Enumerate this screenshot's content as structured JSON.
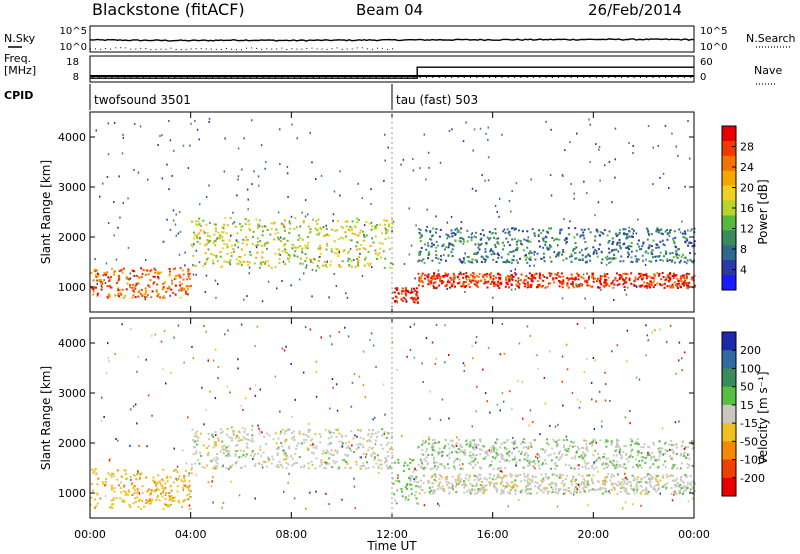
{
  "header": {
    "station": "Blackstone (fitACF)",
    "beam": "Beam 04",
    "date": "26/Feb/2014"
  },
  "side_labels": {
    "nsky": "N.Sky",
    "nsearch": "N.Search",
    "freq_line1": "Freq.",
    "freq_line2": "[MHz]",
    "nave": "Nave",
    "cpid": "CPID"
  },
  "noise_panel": {
    "left_ticks": [
      "10^5",
      "10^0"
    ],
    "right_ticks": [
      "10^5",
      "10^0"
    ]
  },
  "freq_panel": {
    "left_ticks": [
      "18",
      "8"
    ],
    "right_ticks": [
      "60",
      "0"
    ]
  },
  "cpid": {
    "programs": [
      {
        "name": "twofsound 3501",
        "start_hour": 0
      },
      {
        "name": "tau (fast) 503",
        "start_hour": 12
      }
    ]
  },
  "axes": {
    "ylabel": "Slant Range [km]",
    "yticks": [
      "1000",
      "2000",
      "3000",
      "4000"
    ],
    "xticks": [
      "00:00",
      "04:00",
      "08:00",
      "12:00",
      "16:00",
      "20:00",
      "00:00"
    ],
    "xlabel": "Time UT"
  },
  "colorbars": {
    "power": {
      "label": "Power [dB]",
      "ticks": [
        "4",
        "8",
        "12",
        "16",
        "20",
        "24",
        "28"
      ],
      "colors": [
        "#1a1aff",
        "#2a3aa8",
        "#2f6a8c",
        "#3a8a5a",
        "#58b83a",
        "#b6d42a",
        "#f0d020",
        "#f5a800",
        "#f57300",
        "#f03a00",
        "#e80000"
      ]
    },
    "velocity": {
      "label": "Velocity [m s⁻¹]",
      "ticks": [
        "200",
        "100",
        "50",
        "15",
        "-15",
        "-50",
        "-100",
        "-200"
      ],
      "colors": [
        "#1a2aa8",
        "#2f6aa0",
        "#3a8a5a",
        "#58c040",
        "#c8c8c0",
        "#f0c020",
        "#f58a00",
        "#f04000",
        "#e80000"
      ]
    }
  },
  "chart_data": [
    {
      "type": "line",
      "panel": "noise",
      "series": [
        {
          "name": "N.Sky",
          "x": [
            0,
            2,
            4,
            6,
            8,
            10,
            12,
            14,
            16,
            18,
            20,
            22,
            24
          ],
          "values": [
            200,
            160,
            140,
            180,
            150,
            170,
            190,
            210,
            220,
            230,
            250,
            260,
            240
          ]
        },
        {
          "name": "N.Search",
          "x": [
            0,
            2,
            4,
            6,
            8,
            10,
            12
          ],
          "values": [
            5,
            4,
            3,
            4,
            4,
            5,
            5
          ]
        }
      ],
      "ylim": [
        1,
        100000
      ]
    },
    {
      "type": "line",
      "panel": "frequency",
      "series": [
        {
          "name": "Freq.",
          "x": [
            0,
            4,
            8,
            12,
            16,
            20,
            24
          ],
          "values": [
            10.5,
            10.5,
            10.5,
            10.5,
            10.5,
            10.5,
            10.5
          ]
        },
        {
          "name": "Nave",
          "x": [
            0,
            13,
            13,
            24
          ],
          "values": [
            5,
            5,
            35,
            35
          ]
        }
      ]
    },
    {
      "type": "heatmap",
      "panel": "power",
      "xlabel": "Time UT",
      "ylabel": "Slant Range [km]",
      "xlim": [
        0,
        24
      ],
      "ylim": [
        500,
        4500
      ],
      "colorbar_label": "Power [dB]",
      "clim": [
        0,
        30
      ],
      "regions": [
        {
          "hours": [
            0,
            4
          ],
          "range_km": [
            800,
            1400
          ],
          "power_db": 24
        },
        {
          "hours": [
            4,
            12
          ],
          "range_km": [
            1400,
            2400
          ],
          "power_db": 16
        },
        {
          "hours": [
            12,
            13
          ],
          "range_km": [
            700,
            1000
          ],
          "power_db": 28
        },
        {
          "hours": [
            13,
            24
          ],
          "range_km": [
            1000,
            1300
          ],
          "power_db": 27
        },
        {
          "hours": [
            13,
            24
          ],
          "range_km": [
            1500,
            2200
          ],
          "power_db": 8
        }
      ]
    },
    {
      "type": "heatmap",
      "panel": "velocity",
      "xlabel": "Time UT",
      "ylabel": "Slant Range [km]",
      "xlim": [
        0,
        24
      ],
      "ylim": [
        500,
        4500
      ],
      "colorbar_label": "Velocity [m s⁻¹]",
      "clim": [
        -200,
        200
      ],
      "regions": [
        {
          "hours": [
            0,
            4
          ],
          "range_km": [
            700,
            1500
          ],
          "velocity": -50
        },
        {
          "hours": [
            4,
            12
          ],
          "range_km": [
            1500,
            2300
          ],
          "velocity": 0
        },
        {
          "hours": [
            12,
            13
          ],
          "range_km": [
            800,
            1700
          ],
          "velocity": 30
        },
        {
          "hours": [
            13,
            24
          ],
          "range_km": [
            1000,
            1400
          ],
          "velocity": 0
        },
        {
          "hours": [
            13,
            24
          ],
          "range_km": [
            1500,
            2100
          ],
          "velocity": 10
        }
      ]
    }
  ]
}
